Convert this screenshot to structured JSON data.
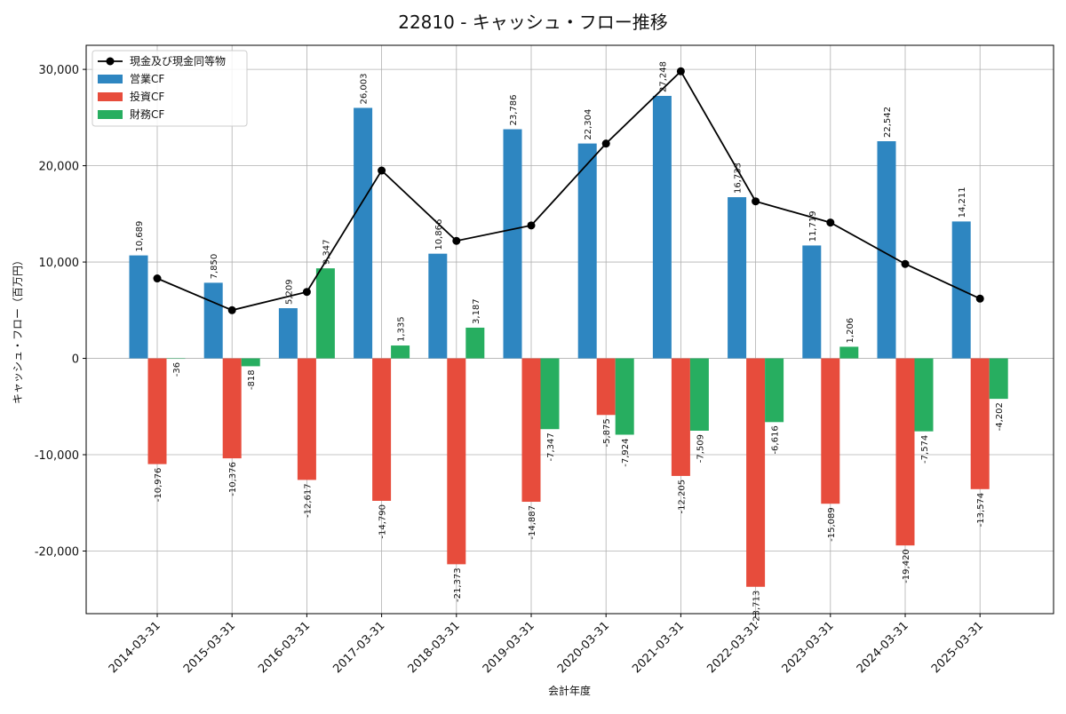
{
  "chart_data": {
    "type": "bar",
    "title": "22810 - キャッシュ・フロー推移",
    "xlabel": "会計年度",
    "ylabel": "キャッシュ・フロー（百万円）",
    "categories": [
      "2014-03-31",
      "2015-03-31",
      "2016-03-31",
      "2017-03-31",
      "2018-03-31",
      "2019-03-31",
      "2020-03-31",
      "2021-03-31",
      "2022-03-31",
      "2023-03-31",
      "2024-03-31",
      "2025-03-31"
    ],
    "series": [
      {
        "name": "営業CF",
        "type": "bar",
        "color": "#2e86c1",
        "values": [
          10689,
          7850,
          5209,
          26003,
          10866,
          23786,
          22304,
          27248,
          16733,
          11719,
          22542,
          14211
        ],
        "labels": [
          "10,689",
          "7,850",
          "5,209",
          "26,003",
          "10,866",
          "23,786",
          "22,304",
          "27,248",
          "16,733",
          "11,719",
          "22,542",
          "14,211"
        ]
      },
      {
        "name": "投資CF",
        "type": "bar",
        "color": "#e74c3c",
        "values": [
          -10976,
          -10376,
          -12617,
          -14790,
          -21373,
          -14887,
          -5875,
          -12205,
          -23713,
          -15089,
          -19420,
          -13574
        ],
        "labels": [
          "-10,976",
          "-10,376",
          "-12,617",
          "-14,790",
          "-21,373",
          "-14,887",
          "-5,875",
          "-12,205",
          "-23,713",
          "-15,089",
          "-19,420",
          "-13,574"
        ]
      },
      {
        "name": "財務CF",
        "type": "bar",
        "color": "#27ae60",
        "values": [
          -36,
          -818,
          9347,
          1335,
          3187,
          -7347,
          -7924,
          -7509,
          -6616,
          1206,
          -7574,
          -4202
        ],
        "labels": [
          "-36",
          "-818",
          "9,347",
          "1,335",
          "3,187",
          "-7,347",
          "-7,924",
          "-7,509",
          "-6,616",
          "1,206",
          "-7,574",
          "-4,202"
        ]
      },
      {
        "name": "現金及び現金同等物",
        "type": "line",
        "color": "#000000",
        "values": [
          8300,
          5000,
          6900,
          19500,
          12200,
          13800,
          22300,
          29800,
          16300,
          14100,
          9800,
          6200
        ]
      }
    ],
    "yticks": [
      -20000,
      -10000,
      0,
      10000,
      20000,
      30000
    ],
    "ytick_labels": [
      "-20,000",
      "-10,000",
      "0",
      "10,000",
      "20,000",
      "30,000"
    ],
    "ylim": [
      -26500,
      32500
    ],
    "grid": true,
    "legend_position": "top-left"
  }
}
